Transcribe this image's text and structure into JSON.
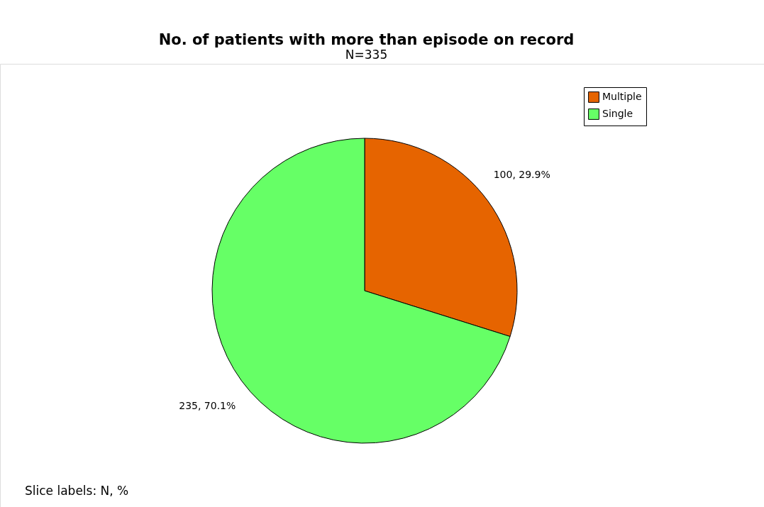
{
  "chart_data": {
    "type": "pie",
    "title": "No. of patients with more than episode on record",
    "subtitle": "N=335",
    "categories": [
      "Multiple",
      "Single"
    ],
    "values": [
      100,
      235
    ],
    "colors": [
      "#e66400",
      "#66ff66"
    ],
    "value_labels": [
      "100, 29.9%",
      "235, 70.1%"
    ],
    "legend": "top right",
    "annotations": [
      "Slice labels: N, %"
    ]
  }
}
